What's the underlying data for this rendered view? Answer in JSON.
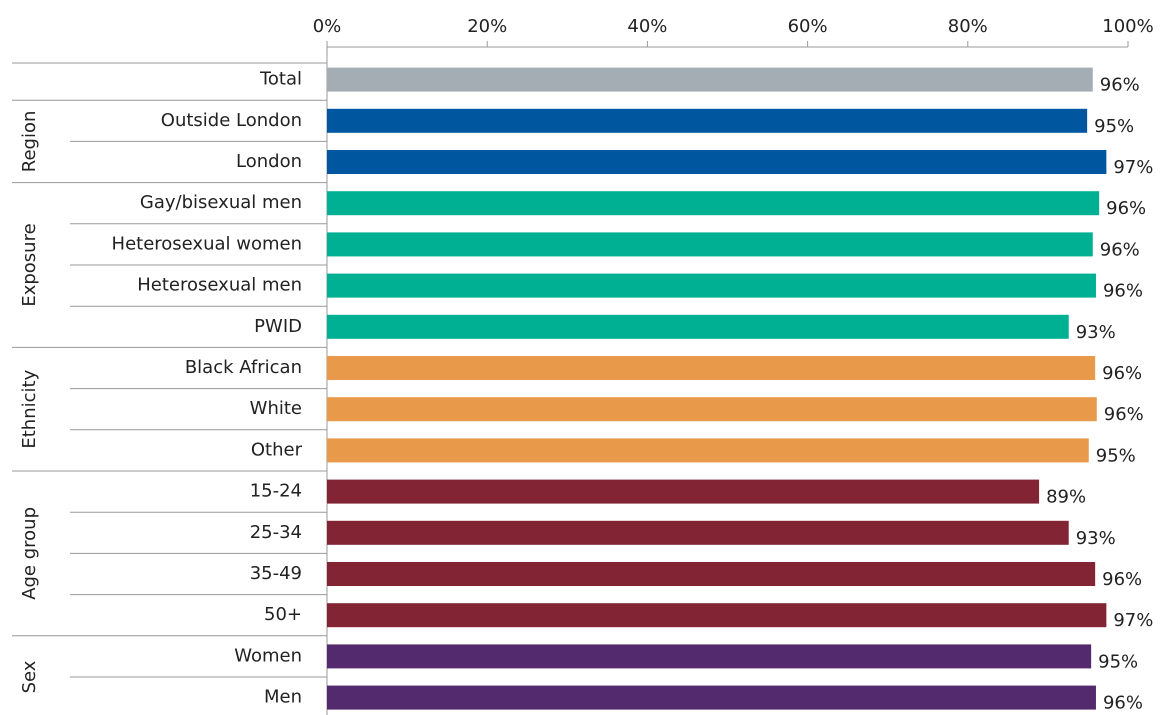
{
  "chart_data": {
    "type": "bar",
    "orientation": "horizontal",
    "categories": [
      "Total",
      "Outside London",
      "London",
      "Gay/bisexual men",
      "Heterosexual women",
      "Heterosexual men",
      "PWID",
      "Black African",
      "White",
      "Other",
      "15-24",
      "25-34",
      "35-49",
      "50+",
      "Women",
      "Men"
    ],
    "groups": [
      null,
      "Region",
      "Region",
      "Exposure",
      "Exposure",
      "Exposure",
      "Exposure",
      "Ethnicity",
      "Ethnicity",
      "Ethnicity",
      "Age group",
      "Age group",
      "Age group",
      "Age group",
      "Sex",
      "Sex"
    ],
    "values": [
      95.6,
      94.9,
      97.3,
      96.4,
      95.6,
      96.0,
      92.6,
      95.9,
      96.1,
      95.1,
      88.9,
      92.6,
      95.9,
      97.3,
      95.4,
      96.0
    ],
    "value_labels": [
      "96%",
      "95%",
      "97%",
      "96%",
      "96%",
      "96%",
      "93%",
      "96%",
      "96%",
      "95%",
      "89%",
      "93%",
      "96%",
      "97%",
      "95%",
      "96%"
    ],
    "colors": [
      "#a5adb4",
      "#0057a0",
      "#0057a0",
      "#00b092",
      "#00b092",
      "#00b092",
      "#00b092",
      "#e8994a",
      "#e8994a",
      "#e8994a",
      "#822433",
      "#822433",
      "#822433",
      "#822433",
      "#532a6e",
      "#532a6e"
    ],
    "xlim": [
      0,
      100
    ],
    "xticks": [
      {
        "value": 0,
        "label": "0%"
      },
      {
        "value": 20,
        "label": "20%"
      },
      {
        "value": 40,
        "label": "40%"
      },
      {
        "value": 60,
        "label": "60%"
      },
      {
        "value": 80,
        "label": "80%"
      },
      {
        "value": 100,
        "label": "100%"
      }
    ]
  }
}
